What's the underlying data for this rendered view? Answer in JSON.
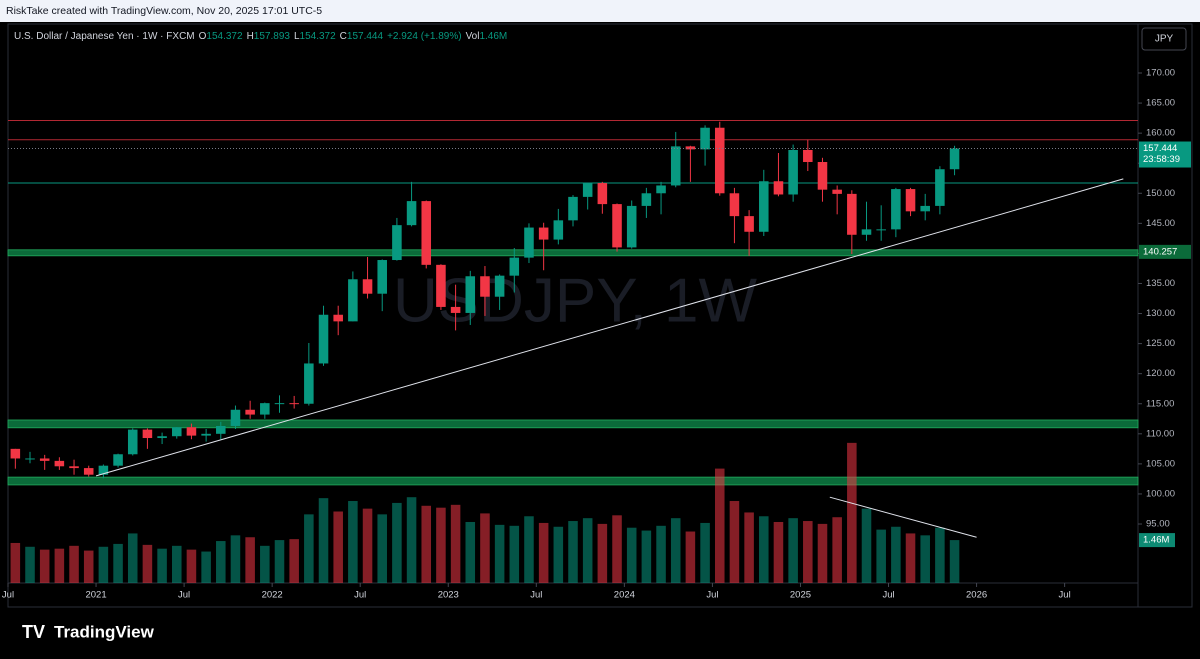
{
  "chart_data": {
    "type": "candlestick",
    "credit": "RiskTake created with TradingView.com, Nov 20, 2025 17:01 UTC-5",
    "symbol": "U.S. Dollar / Japanese Yen · 1W · FXCM",
    "legend": [
      {
        "label": "O",
        "value": 154.372
      },
      {
        "label": "H",
        "value": 157.893
      },
      {
        "label": "L",
        "value": 154.372
      },
      {
        "label": "C",
        "value": 157.444
      }
    ],
    "change": "+2.924 (+1.89%)",
    "volume_label": "Vol",
    "volume_value": "1.46M",
    "watermark": "USDJPY, 1W",
    "currency": "JPY",
    "countdown": "23:58:39",
    "brand": "TradingView",
    "up_color": "#089981",
    "down_color": "#f23645",
    "x": [
      "2020-07",
      "2020-08",
      "2020-09",
      "2020-10",
      "2020-11",
      "2020-12",
      "2021-01",
      "2021-02",
      "2021-03",
      "2021-04",
      "2021-05",
      "2021-06",
      "2021-07",
      "2021-08",
      "2021-09",
      "2021-10",
      "2021-11",
      "2021-12",
      "2022-01",
      "2022-02",
      "2022-03",
      "2022-04",
      "2022-05",
      "2022-06",
      "2022-07",
      "2022-08",
      "2022-09",
      "2022-10",
      "2022-11",
      "2022-12",
      "2023-01",
      "2023-02",
      "2023-03",
      "2023-04",
      "2023-05",
      "2023-06",
      "2023-07",
      "2023-08",
      "2023-09",
      "2023-10",
      "2023-11",
      "2023-12",
      "2024-01",
      "2024-02",
      "2024-03",
      "2024-04",
      "2024-05",
      "2024-06",
      "2024-07",
      "2024-08",
      "2024-09",
      "2024-10",
      "2024-11",
      "2024-12",
      "2025-01",
      "2025-02",
      "2025-03",
      "2025-04",
      "2025-05",
      "2025-06",
      "2025-07",
      "2025-08",
      "2025-09",
      "2025-10",
      "2025-11"
    ],
    "open": [
      107.5,
      105.9,
      105.9,
      105.5,
      104.6,
      104.3,
      103.2,
      104.7,
      106.6,
      110.7,
      109.3,
      109.6,
      111.1,
      109.7,
      110.0,
      111.3,
      114.0,
      113.2,
      115.1,
      115.1,
      115.0,
      121.7,
      129.8,
      128.7,
      135.7,
      133.3,
      138.9,
      144.7,
      148.7,
      138.1,
      131.1,
      130.1,
      136.2,
      132.8,
      136.3,
      139.3,
      144.3,
      142.3,
      145.5,
      149.4,
      151.7,
      148.2,
      141.0,
      147.9,
      150.0,
      151.3,
      157.8,
      157.3,
      160.9,
      150.0,
      146.2,
      143.6,
      152.0,
      149.8,
      157.2,
      155.2,
      150.6,
      149.9,
      143.1,
      144.0,
      144.0,
      150.7,
      147.0,
      147.9,
      154.0
    ],
    "high": [
      107.5,
      107.0,
      106.5,
      106.1,
      105.7,
      104.7,
      104.9,
      106.7,
      110.9,
      110.9,
      110.2,
      111.1,
      111.7,
      110.8,
      112.0,
      114.7,
      115.5,
      115.2,
      116.4,
      116.3,
      125.1,
      131.3,
      131.3,
      137.0,
      139.4,
      139.0,
      145.9,
      151.9,
      148.8,
      138.2,
      134.8,
      137.1,
      137.9,
      136.5,
      140.9,
      145.0,
      145.1,
      147.4,
      149.7,
      151.7,
      151.9,
      148.3,
      148.8,
      150.9,
      151.9,
      160.2,
      157.9,
      161.3,
      161.9,
      150.9,
      147.2,
      153.9,
      156.7,
      158.1,
      158.9,
      155.9,
      151.3,
      150.5,
      148.6,
      148.0,
      150.9,
      150.9,
      149.9,
      154.5,
      157.9
    ],
    "low": [
      104.2,
      105.1,
      104.0,
      104.0,
      103.2,
      102.9,
      102.6,
      104.4,
      106.4,
      107.5,
      108.3,
      109.2,
      109.1,
      108.7,
      109.1,
      110.8,
      112.5,
      112.5,
      113.5,
      114.2,
      114.7,
      121.3,
      126.4,
      128.7,
      132.5,
      130.4,
      138.8,
      144.5,
      137.5,
      130.6,
      127.2,
      128.1,
      129.6,
      130.6,
      133.5,
      138.4,
      137.2,
      141.5,
      144.5,
      147.3,
      146.6,
      140.3,
      140.8,
      145.9,
      146.5,
      151.0,
      151.9,
      154.6,
      149.6,
      141.7,
      139.6,
      142.9,
      149.5,
      148.6,
      153.7,
      148.6,
      146.5,
      139.9,
      142.1,
      142.1,
      142.7,
      146.2,
      145.5,
      146.5,
      153.0
    ],
    "close": [
      105.9,
      105.9,
      105.5,
      104.6,
      104.3,
      103.2,
      104.7,
      106.6,
      110.7,
      109.3,
      109.6,
      111.1,
      109.7,
      110.0,
      111.3,
      114.0,
      113.2,
      115.1,
      115.1,
      115.0,
      121.7,
      129.8,
      128.7,
      135.7,
      133.3,
      138.9,
      144.7,
      148.7,
      138.1,
      131.1,
      130.1,
      136.2,
      132.8,
      136.3,
      139.3,
      144.3,
      142.3,
      145.5,
      149.4,
      151.7,
      148.2,
      141.0,
      147.9,
      150.0,
      151.3,
      157.8,
      157.3,
      160.9,
      150.0,
      146.2,
      143.6,
      152.0,
      149.8,
      157.2,
      155.2,
      150.6,
      149.9,
      143.1,
      144.0,
      144.0,
      150.7,
      147.0,
      147.9,
      154.0,
      157.444
    ],
    "volume": [
      4.2,
      3.8,
      3.5,
      3.6,
      3.9,
      3.4,
      3.8,
      4.1,
      5.2,
      4.0,
      3.6,
      3.9,
      3.5,
      3.3,
      4.4,
      5.0,
      4.8,
      3.9,
      4.5,
      4.6,
      7.2,
      8.9,
      7.5,
      8.6,
      7.8,
      7.2,
      8.4,
      9.0,
      8.1,
      7.9,
      8.2,
      6.4,
      7.3,
      6.1,
      6.0,
      7.0,
      6.3,
      5.9,
      6.5,
      6.8,
      6.2,
      7.1,
      5.8,
      5.5,
      6.0,
      6.8,
      5.4,
      6.3,
      12.0,
      8.6,
      7.4,
      7.0,
      6.4,
      6.8,
      6.5,
      6.2,
      6.9,
      14.7,
      7.8,
      5.6,
      5.9,
      5.2,
      5.0,
      5.8,
      4.5
    ],
    "volume_lim": [
      0,
      15
    ],
    "xlim": [
      "2020-07",
      "2026-12"
    ],
    "xticks": [
      {
        "value": "2020-07",
        "label": "Jul"
      },
      {
        "value": "2021-01",
        "label": "2021"
      },
      {
        "value": "2021-07",
        "label": "Jul"
      },
      {
        "value": "2022-01",
        "label": "2022"
      },
      {
        "value": "2022-07",
        "label": "Jul"
      },
      {
        "value": "2023-01",
        "label": "2023"
      },
      {
        "value": "2023-07",
        "label": "Jul"
      },
      {
        "value": "2024-01",
        "label": "2024"
      },
      {
        "value": "2024-07",
        "label": "Jul"
      },
      {
        "value": "2025-01",
        "label": "2025"
      },
      {
        "value": "2025-07",
        "label": "Jul"
      },
      {
        "value": "2026-01",
        "label": "2026"
      },
      {
        "value": "2026-07",
        "label": "Jul"
      }
    ],
    "ylim": [
      81.2,
      178.15
    ],
    "yticks": [
      {
        "value": 95,
        "label": "95.00"
      },
      {
        "value": 100,
        "label": "100.00"
      },
      {
        "value": 105,
        "label": "105.00"
      },
      {
        "value": 110,
        "label": "110.00"
      },
      {
        "value": 115,
        "label": "115.00"
      },
      {
        "value": 120,
        "label": "120.00"
      },
      {
        "value": 125,
        "label": "125.00"
      },
      {
        "value": 130,
        "label": "130.00"
      },
      {
        "value": 135,
        "label": "135.00"
      },
      {
        "value": 140,
        "label": "140.00"
      },
      {
        "value": 145,
        "label": "145.00"
      },
      {
        "value": 150,
        "label": "150.00"
      },
      {
        "value": 155,
        "label": "155.00"
      },
      {
        "value": 160,
        "label": "160.00"
      },
      {
        "value": 165,
        "label": "165.00"
      },
      {
        "value": 170,
        "label": "170.00"
      }
    ],
    "levels": [
      {
        "value": 162.1,
        "color": "#b22833"
      },
      {
        "value": 158.9,
        "color": "#b22833"
      },
      {
        "value": 151.7,
        "color": "#089981"
      }
    ],
    "zones": [
      {
        "from": 139.6,
        "to": 140.6,
        "color": "#0b6b3a"
      },
      {
        "from": 111.0,
        "to": 112.3,
        "color": "#0b6b3a"
      },
      {
        "from": 101.5,
        "to": 102.8,
        "color": "#0b6b3a"
      }
    ],
    "level_tag": 140.257,
    "trendlines": [
      {
        "from": [
          "2021-01",
          103.0
        ],
        "to": [
          "2026-11",
          152.4
        ],
        "color": "#e0e3eb"
      }
    ],
    "volume_trendlines": [
      {
        "from": [
          "2025-03",
          9.0
        ],
        "to": [
          "2026-01",
          4.8
        ],
        "color": "#e0e3eb"
      }
    ]
  }
}
